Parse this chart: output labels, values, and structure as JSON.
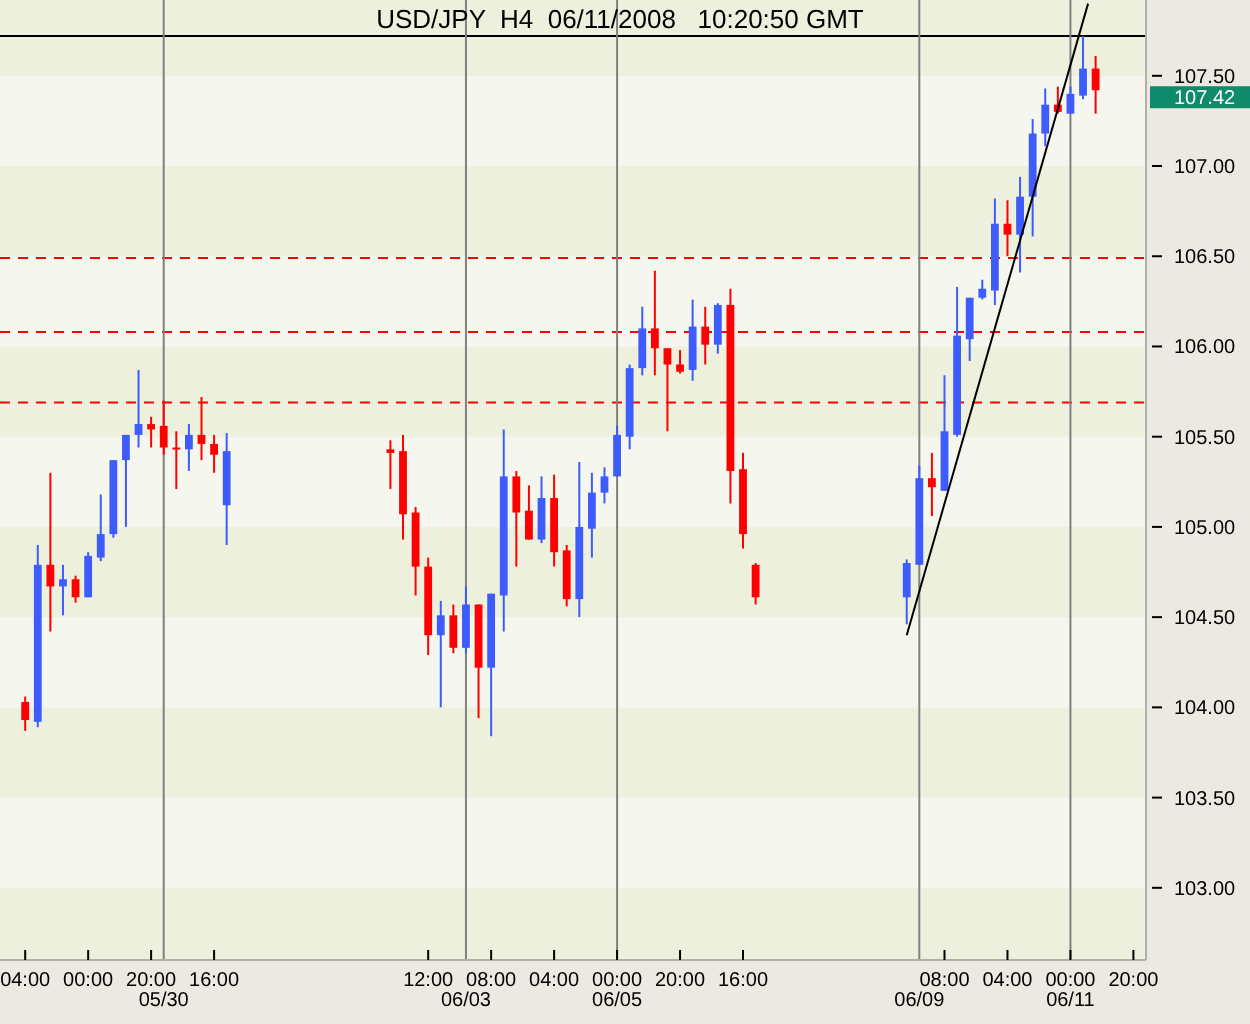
{
  "chart_data": {
    "type": "candlestick",
    "title": "USD/JPY  H4  06/11/2008   10:20:50 GMT",
    "x": [
      "2008-05-28T04:00",
      "2008-05-28T08:00",
      "2008-05-28T12:00",
      "2008-05-28T16:00",
      "2008-05-28T20:00",
      "2008-05-29T00:00",
      "2008-05-29T04:00",
      "2008-05-29T08:00",
      "2008-05-29T12:00",
      "2008-05-29T16:00",
      "2008-05-29T20:00",
      "2008-05-30T00:00",
      "2008-05-30T04:00",
      "2008-05-30T08:00",
      "2008-05-30T12:00",
      "2008-05-30T16:00",
      "2008-05-30T20:00",
      "2008-06-02T00:00",
      "2008-06-02T04:00",
      "2008-06-02T08:00",
      "2008-06-02T12:00",
      "2008-06-02T16:00",
      "2008-06-02T20:00",
      "2008-06-03T00:00",
      "2008-06-03T04:00",
      "2008-06-03T08:00",
      "2008-06-03T12:00",
      "2008-06-03T16:00",
      "2008-06-03T20:00",
      "2008-06-04T00:00",
      "2008-06-04T04:00",
      "2008-06-04T08:00",
      "2008-06-04T12:00",
      "2008-06-04T16:00",
      "2008-06-04T20:00",
      "2008-06-05T00:00",
      "2008-06-05T04:00",
      "2008-06-05T08:00",
      "2008-06-05T12:00",
      "2008-06-05T16:00",
      "2008-06-05T20:00",
      "2008-06-06T00:00",
      "2008-06-06T04:00",
      "2008-06-06T08:00",
      "2008-06-06T12:00",
      "2008-06-06T16:00",
      "2008-06-06T20:00",
      "2008-06-08T20:00",
      "2008-06-09T00:00",
      "2008-06-09T04:00",
      "2008-06-09T08:00",
      "2008-06-09T12:00",
      "2008-06-09T16:00",
      "2008-06-09T20:00",
      "2008-06-10T00:00",
      "2008-06-10T04:00",
      "2008-06-10T08:00",
      "2008-06-10T12:00",
      "2008-06-10T16:00",
      "2008-06-10T20:00",
      "2008-06-11T00:00",
      "2008-06-11T04:00",
      "2008-06-11T08:00"
    ],
    "ohlc": [
      [
        104.03,
        104.06,
        103.87,
        103.93
      ],
      [
        103.92,
        104.9,
        103.89,
        104.79
      ],
      [
        104.79,
        105.3,
        104.42,
        104.67
      ],
      [
        104.67,
        104.79,
        104.51,
        104.71
      ],
      [
        104.71,
        104.73,
        104.58,
        104.61
      ],
      [
        104.61,
        104.86,
        104.61,
        104.84
      ],
      [
        104.83,
        105.18,
        104.81,
        104.96
      ],
      [
        104.96,
        105.37,
        104.94,
        105.37
      ],
      [
        105.37,
        105.51,
        105.0,
        105.51
      ],
      [
        105.51,
        105.87,
        105.44,
        105.57
      ],
      [
        105.57,
        105.61,
        105.44,
        105.54
      ],
      [
        105.56,
        105.7,
        105.4,
        105.44
      ],
      [
        105.44,
        105.53,
        105.21,
        105.43
      ],
      [
        105.43,
        105.57,
        105.31,
        105.51
      ],
      [
        105.51,
        105.72,
        105.37,
        105.46
      ],
      [
        105.46,
        105.51,
        105.3,
        105.4
      ],
      [
        105.12,
        105.52,
        104.9,
        105.42
      ],
      [
        105.43,
        105.48,
        105.21,
        105.41
      ],
      [
        105.42,
        105.51,
        104.93,
        105.07
      ],
      [
        105.08,
        105.11,
        104.62,
        104.78
      ],
      [
        104.78,
        104.83,
        104.29,
        104.4
      ],
      [
        104.4,
        104.59,
        104.0,
        104.51
      ],
      [
        104.51,
        104.57,
        104.3,
        104.33
      ],
      [
        104.33,
        104.67,
        104.3,
        104.57
      ],
      [
        104.57,
        104.57,
        103.94,
        104.22
      ],
      [
        104.22,
        104.63,
        103.84,
        104.63
      ],
      [
        104.62,
        105.54,
        104.42,
        105.28
      ],
      [
        105.28,
        105.31,
        104.78,
        105.08
      ],
      [
        105.09,
        105.23,
        104.93,
        104.93
      ],
      [
        104.93,
        105.28,
        104.91,
        105.16
      ],
      [
        105.16,
        105.29,
        104.78,
        104.86
      ],
      [
        104.87,
        104.9,
        104.56,
        104.6
      ],
      [
        104.6,
        105.36,
        104.5,
        105.0
      ],
      [
        104.99,
        105.3,
        104.83,
        105.19
      ],
      [
        105.19,
        105.33,
        105.13,
        105.28
      ],
      [
        105.28,
        105.56,
        105.28,
        105.51
      ],
      [
        105.5,
        105.9,
        105.43,
        105.88
      ],
      [
        105.88,
        106.22,
        105.84,
        106.1
      ],
      [
        106.1,
        106.42,
        105.84,
        105.99
      ],
      [
        105.99,
        105.99,
        105.53,
        105.9
      ],
      [
        105.9,
        105.98,
        105.85,
        105.86
      ],
      [
        105.87,
        106.26,
        105.81,
        106.11
      ],
      [
        106.11,
        106.22,
        105.9,
        106.01
      ],
      [
        106.01,
        106.24,
        105.96,
        106.23
      ],
      [
        106.23,
        106.32,
        105.13,
        105.31
      ],
      [
        105.32,
        105.41,
        104.88,
        104.96
      ],
      [
        104.79,
        104.8,
        104.57,
        104.61
      ],
      [
        104.61,
        104.82,
        104.46,
        104.8
      ],
      [
        104.79,
        105.34,
        104.79,
        105.27
      ],
      [
        105.27,
        105.41,
        105.06,
        105.22
      ],
      [
        105.2,
        105.84,
        105.2,
        105.53
      ],
      [
        105.51,
        106.33,
        105.5,
        106.06
      ],
      [
        106.04,
        106.27,
        105.92,
        106.27
      ],
      [
        106.27,
        106.37,
        106.26,
        106.32
      ],
      [
        106.31,
        106.82,
        106.23,
        106.68
      ],
      [
        106.68,
        106.81,
        106.5,
        106.62
      ],
      [
        106.62,
        106.94,
        106.41,
        106.83
      ],
      [
        106.83,
        107.26,
        106.61,
        107.18
      ],
      [
        107.18,
        107.43,
        107.11,
        107.34
      ],
      [
        107.34,
        107.44,
        107.29,
        107.3
      ],
      [
        107.29,
        107.44,
        107.29,
        107.4
      ],
      [
        107.39,
        107.72,
        107.37,
        107.54
      ],
      [
        107.54,
        107.61,
        107.29,
        107.42
      ]
    ],
    "colors": [
      "#ff0000",
      "#3e5cfb",
      "#ff0000",
      "#3e5cfb",
      "#ff0000",
      "#3e5cfb",
      "#3e5cfb",
      "#3e5cfb",
      "#3e5cfb",
      "#3e5cfb",
      "#ff0000",
      "#ff0000",
      "#ff0000",
      "#3e5cfb",
      "#ff0000",
      "#ff0000",
      "#3e5cfb",
      "#ff0000",
      "#ff0000",
      "#ff0000",
      "#ff0000",
      "#3e5cfb",
      "#ff0000",
      "#3e5cfb",
      "#ff0000",
      "#3e5cfb",
      "#3e5cfb",
      "#ff0000",
      "#ff0000",
      "#3e5cfb",
      "#ff0000",
      "#ff0000",
      "#3e5cfb",
      "#3e5cfb",
      "#3e5cfb",
      "#3e5cfb",
      "#3e5cfb",
      "#3e5cfb",
      "#ff0000",
      "#ff0000",
      "#ff0000",
      "#3e5cfb",
      "#ff0000",
      "#3e5cfb",
      "#ff0000",
      "#ff0000",
      "#ff0000",
      "#3e5cfb",
      "#3e5cfb",
      "#ff0000",
      "#3e5cfb",
      "#3e5cfb",
      "#3e5cfb",
      "#3e5cfb",
      "#3e5cfb",
      "#ff0000",
      "#3e5cfb",
      "#3e5cfb",
      "#3e5cfb",
      "#ff0000",
      "#3e5cfb",
      "#3e5cfb",
      "#ff0000"
    ],
    "series": [
      {
        "type": "line",
        "x": [
          "2008-06-08T20:00",
          "2008-06-11T05:36"
        ],
        "values": [
          104.4,
          107.9
        ],
        "color": "#000000"
      }
    ],
    "xlim": [
      "2008-05-27T20:00",
      "2008-06-12T00:00"
    ],
    "xticks": [
      {
        "value": "2008-05-28T04:00",
        "label": "04:00"
      },
      {
        "value": "2008-05-29T00:00",
        "label": "00:00"
      },
      {
        "value": "2008-05-29T20:00",
        "label": "20:00"
      },
      {
        "value": "2008-05-30T16:00",
        "label": "16:00"
      },
      {
        "value": "2008-06-02T12:00",
        "label": "12:00"
      },
      {
        "value": "2008-06-03T08:00",
        "label": "08:00"
      },
      {
        "value": "2008-06-04T04:00",
        "label": "04:00"
      },
      {
        "value": "2008-06-05T00:00",
        "label": "00:00"
      },
      {
        "value": "2008-06-05T20:00",
        "label": "20:00"
      },
      {
        "value": "2008-06-06T16:00",
        "label": "16:00"
      },
      {
        "value": "2008-06-09T08:00",
        "label": "08:00"
      },
      {
        "value": "2008-06-10T04:00",
        "label": "04:00"
      },
      {
        "value": "2008-06-11T00:00",
        "label": "00:00"
      },
      {
        "value": "2008-06-11T20:00",
        "label": "20:00"
      }
    ],
    "ylim": [
      102.6,
      107.92
    ],
    "yticks": [
      {
        "value": 103,
        "label": "103.00"
      },
      {
        "value": 103.5,
        "label": "103.50"
      },
      {
        "value": 104,
        "label": "104.00"
      },
      {
        "value": 104.5,
        "label": "104.50"
      },
      {
        "value": 105,
        "label": "105.00"
      },
      {
        "value": 105.5,
        "label": "105.50"
      },
      {
        "value": 106,
        "label": "106.00"
      },
      {
        "value": 106.5,
        "label": "106.50"
      },
      {
        "value": 107,
        "label": "107.00"
      },
      {
        "value": 107.5,
        "label": "107.50"
      }
    ],
    "ref_lines": [
      {
        "axis": "y",
        "value": 106.49,
        "color": "#ff0000",
        "line_style": "dashed"
      },
      {
        "axis": "y",
        "value": 106.08,
        "color": "#ff0000",
        "line_style": "dashed"
      },
      {
        "axis": "y",
        "value": 105.69,
        "color": "#ff0000",
        "line_style": "dashed"
      },
      {
        "axis": "y",
        "value": 107.72,
        "color": "#000000",
        "line_style": "solid"
      },
      {
        "axis": "x",
        "value": "2008-05-30",
        "label": "05/30",
        "color": "#808080",
        "line_style": "solid"
      },
      {
        "axis": "x",
        "value": "2008-06-03",
        "label": "06/03",
        "color": "#808080",
        "line_style": "solid"
      },
      {
        "axis": "x",
        "value": "2008-06-05",
        "label": "06/05",
        "color": "#808080",
        "line_style": "solid"
      },
      {
        "axis": "x",
        "value": "2008-06-09",
        "label": "06/09",
        "color": "#808080",
        "line_style": "solid"
      },
      {
        "axis": "x",
        "value": "2008-06-11",
        "label": "06/11",
        "color": "#808080",
        "line_style": "solid"
      }
    ],
    "annotations": [
      "107.42"
    ]
  }
}
